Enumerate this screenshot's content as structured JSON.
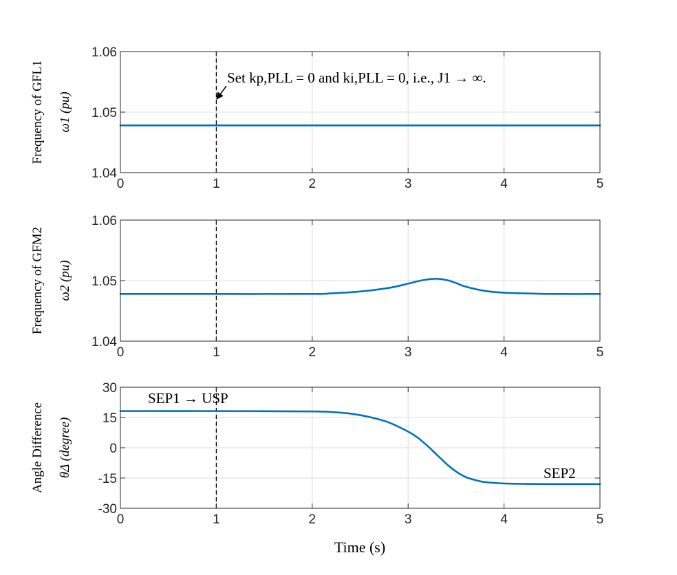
{
  "chart_data": [
    {
      "type": "line",
      "ylabel_outer": "Frequency of GFL1",
      "ylabel_inner": "ω1 (pu)",
      "xlim": [
        0,
        5
      ],
      "ylim": [
        1.04,
        1.06
      ],
      "xticks": [
        "0",
        "1",
        "2",
        "3",
        "4",
        "5"
      ],
      "yticks": [
        "1.04",
        "1.05",
        "1.06"
      ],
      "grid": true,
      "event_line_x": 1,
      "annotation": "Set kp,PLL = 0 and ki,PLL = 0, i.e., J1 → ∞.",
      "series": [
        {
          "color": "#0072BD",
          "x": [
            0,
            1,
            2,
            3,
            4,
            5
          ],
          "y": [
            1.0478,
            1.0478,
            1.0478,
            1.0478,
            1.0478,
            1.0478
          ]
        }
      ]
    },
    {
      "type": "line",
      "ylabel_outer": "Frequency of GFM2",
      "ylabel_inner": "ω2 (pu)",
      "xlim": [
        0,
        5
      ],
      "ylim": [
        1.04,
        1.06
      ],
      "xticks": [
        "0",
        "1",
        "2",
        "3",
        "4",
        "5"
      ],
      "yticks": [
        "1.04",
        "1.05",
        "1.06"
      ],
      "grid": true,
      "event_line_x": 1,
      "series": [
        {
          "color": "#0072BD",
          "x": [
            0,
            1,
            2,
            2.2,
            2.5,
            2.8,
            3.0,
            3.1,
            3.2,
            3.3,
            3.4,
            3.5,
            3.6,
            3.8,
            4.0,
            4.2,
            4.5,
            5
          ],
          "y": [
            1.0478,
            1.0478,
            1.0478,
            1.0479,
            1.0482,
            1.0488,
            1.0495,
            1.0499,
            1.0502,
            1.0503,
            1.0501,
            1.0496,
            1.049,
            1.0483,
            1.048,
            1.0479,
            1.0478,
            1.0478
          ]
        }
      ]
    },
    {
      "type": "line",
      "ylabel_outer": "Angle Difference",
      "ylabel_inner": "θΔ (degree)",
      "xlabel": "Time (s)",
      "xlim": [
        0,
        5
      ],
      "ylim": [
        -30,
        30
      ],
      "xticks": [
        "0",
        "1",
        "2",
        "3",
        "4",
        "5"
      ],
      "yticks": [
        "-30",
        "-15",
        "0",
        "15",
        "30"
      ],
      "grid": true,
      "event_line_x": 1,
      "annotations": [
        "SEP1 → USP",
        "SEP2"
      ],
      "series": [
        {
          "color": "#0072BD",
          "x": [
            0,
            1,
            2,
            2.2,
            2.4,
            2.6,
            2.8,
            3.0,
            3.1,
            3.2,
            3.3,
            3.4,
            3.5,
            3.6,
            3.7,
            3.8,
            4.0,
            4.2,
            4.5,
            5
          ],
          "y": [
            18.2,
            18.2,
            18.0,
            17.7,
            16.9,
            15.2,
            12.5,
            8.0,
            5.0,
            1.0,
            -3.5,
            -8.0,
            -11.8,
            -14.5,
            -16.0,
            -17.0,
            -17.7,
            -17.9,
            -18.0,
            -18.0
          ]
        }
      ]
    }
  ]
}
